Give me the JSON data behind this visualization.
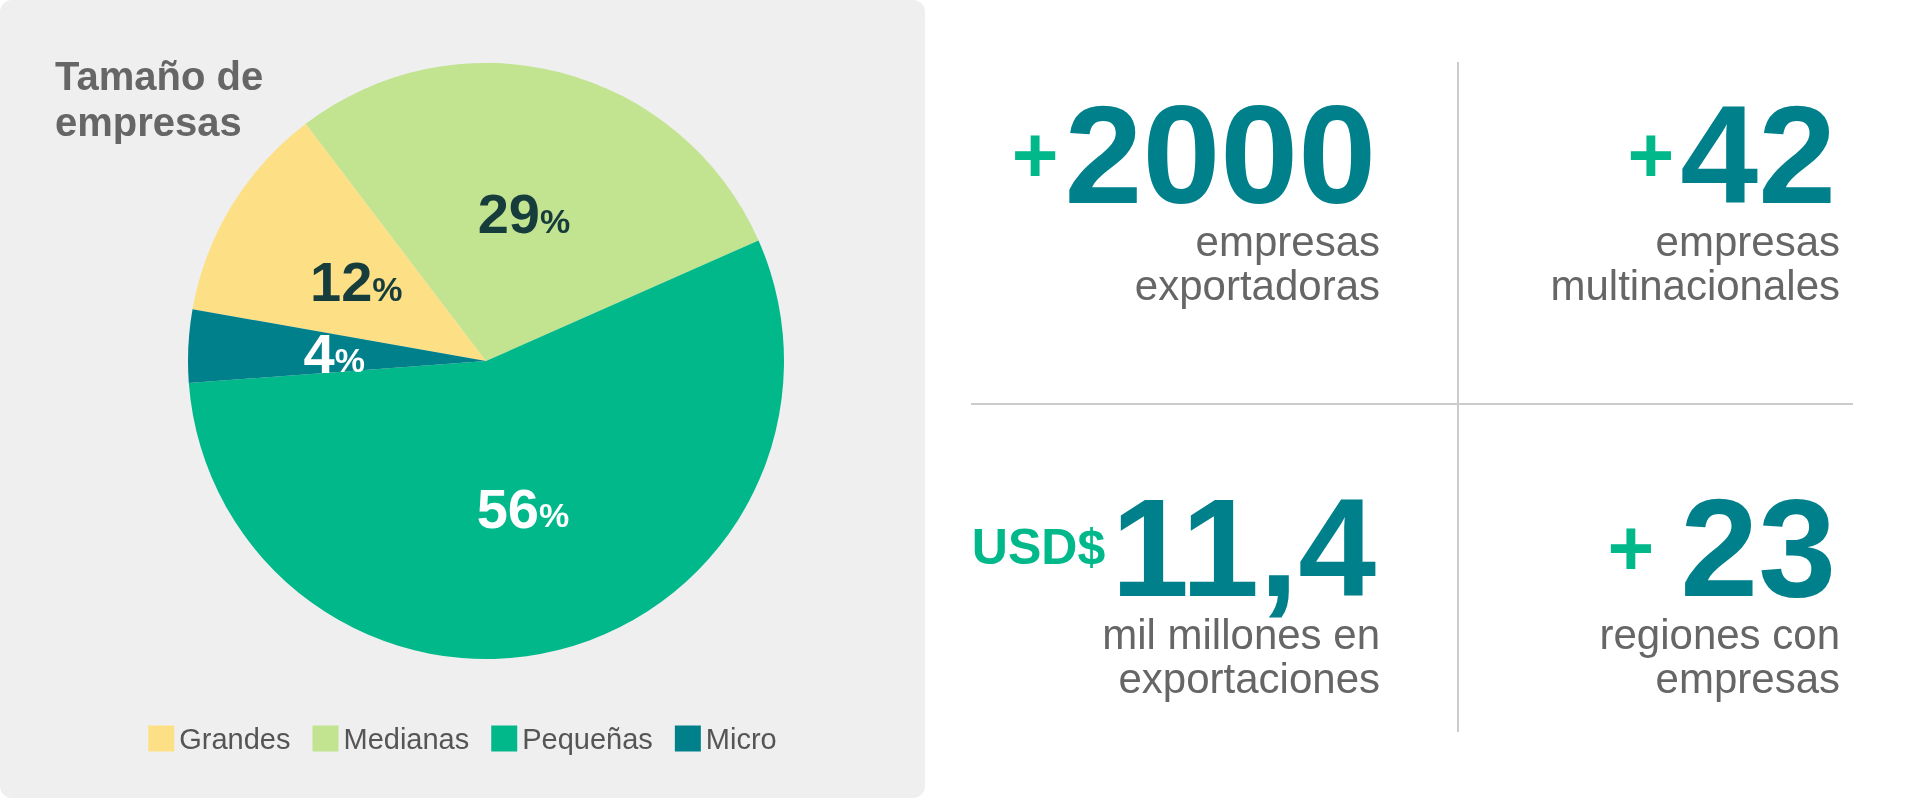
{
  "chart_data": [
    {
      "type": "pie",
      "title": "Tamaño de empresas",
      "categories": [
        "Grandes",
        "Medianas",
        "Pequeñas",
        "Micro"
      ],
      "values": [
        12,
        29,
        56,
        4
      ],
      "value_labels": [
        "12%",
        "29%",
        "56%",
        "4%"
      ],
      "colors": [
        "#fde085",
        "#c2e38f",
        "#00b88a",
        "#00808a"
      ],
      "legend": "bottom"
    },
    {
      "type": "other",
      "annotations": [
        "+",
        "2000",
        "empresas exportadoras",
        "+",
        "42",
        "empresas multinacionales",
        "USD$",
        "11,4",
        "mil millones en exportaciones",
        "+",
        "23",
        "regiones con empresas"
      ]
    }
  ]
}
